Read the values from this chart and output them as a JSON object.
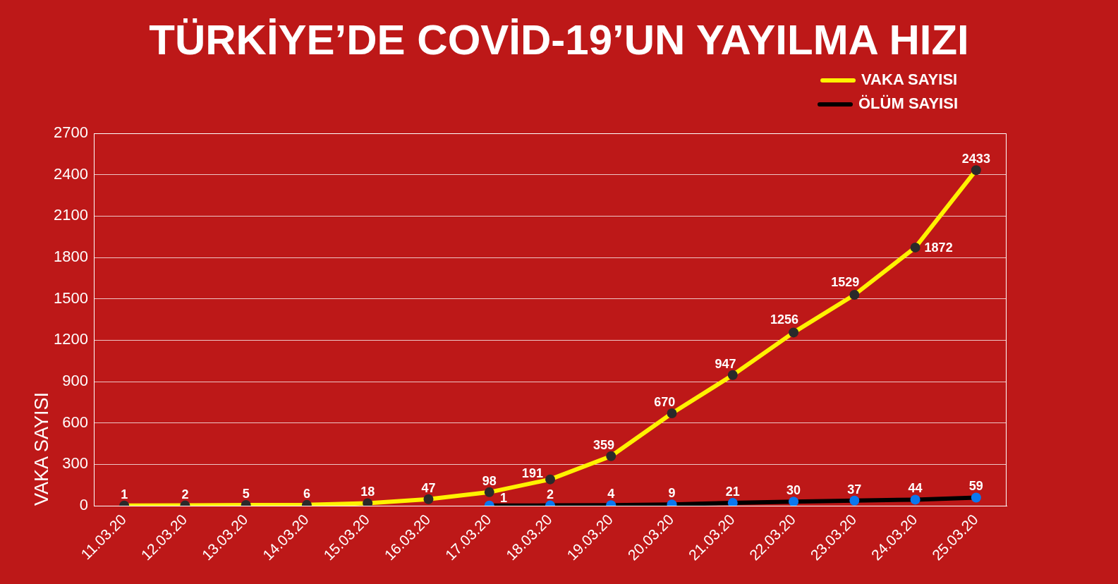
{
  "chart_data": {
    "type": "line",
    "title": "TÜRKİYE’DE COVİD-19’UN YAYILMA HIZI",
    "ylabel": "VAKA SAYISI",
    "categories": [
      "11.03.20",
      "12.03.20",
      "13.03.20",
      "14.03.20",
      "15.03.20",
      "16.03.20",
      "17.03.20",
      "18.03.20",
      "19.03.20",
      "20.03.20",
      "21.03.20",
      "22.03.20",
      "23.03.20",
      "24.03.20",
      "25.03.20"
    ],
    "series": [
      {
        "name": "VAKA SAYISI",
        "color": "#fff200",
        "colors": [
          "#2a2a2a",
          "#2a2a2a",
          "#2a2a2a",
          "#2a2a2a",
          "#2a2a2a",
          "#2a2a2a",
          "#2a2a2a",
          "#2a2a2a",
          "#2a2a2a",
          "#2a2a2a",
          "#2a2a2a",
          "#2a2a2a",
          "#2a2a2a",
          "#2a2a2a",
          "#2a2a2a"
        ],
        "values": [
          1,
          2,
          5,
          6,
          18,
          47,
          98,
          191,
          359,
          670,
          947,
          1256,
          1529,
          1872,
          2433
        ]
      },
      {
        "name": "ÖLÜM SAYISI",
        "color": "#000000",
        "colors": [
          null,
          null,
          null,
          null,
          null,
          null,
          "#0a78f0",
          "#0a78f0",
          "#0a78f0",
          "#0a78f0",
          "#0a78f0",
          "#0a78f0",
          "#0a78f0",
          "#0a78f0",
          "#0a78f0"
        ],
        "values": [
          null,
          null,
          null,
          null,
          null,
          null,
          1,
          2,
          4,
          9,
          21,
          30,
          37,
          44,
          59
        ]
      }
    ],
    "ylim": [
      0,
      2700
    ],
    "yticks": [
      0,
      300,
      600,
      900,
      1200,
      1500,
      1800,
      2100,
      2400,
      2700
    ],
    "grid": "y",
    "legend": "top right",
    "marker": "circle",
    "line_style": "solid",
    "data_labels": true
  }
}
